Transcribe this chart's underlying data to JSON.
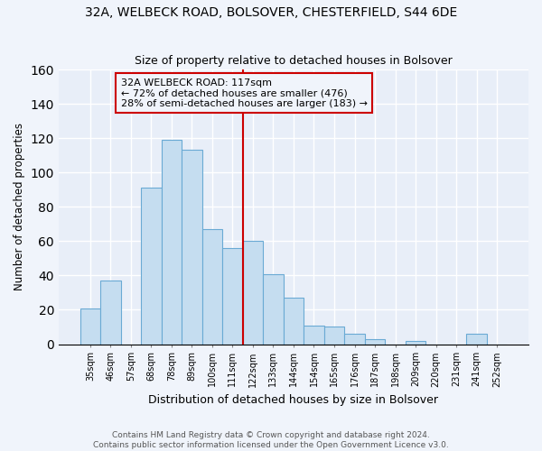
{
  "title": "32A, WELBECK ROAD, BOLSOVER, CHESTERFIELD, S44 6DE",
  "subtitle": "Size of property relative to detached houses in Bolsover",
  "xlabel": "Distribution of detached houses by size in Bolsover",
  "ylabel": "Number of detached properties",
  "bar_labels": [
    "35sqm",
    "46sqm",
    "57sqm",
    "68sqm",
    "78sqm",
    "89sqm",
    "100sqm",
    "111sqm",
    "122sqm",
    "133sqm",
    "144sqm",
    "154sqm",
    "165sqm",
    "176sqm",
    "187sqm",
    "198sqm",
    "209sqm",
    "220sqm",
    "231sqm",
    "241sqm",
    "252sqm"
  ],
  "bar_heights": [
    21,
    37,
    0,
    91,
    119,
    113,
    67,
    56,
    60,
    41,
    27,
    11,
    10,
    6,
    3,
    0,
    2,
    0,
    0,
    6,
    0
  ],
  "bar_color": "#c5ddf0",
  "bar_edge_color": "#6aaad4",
  "vline_color": "#cc0000",
  "annotation_text": "32A WELBECK ROAD: 117sqm\n← 72% of detached houses are smaller (476)\n28% of semi-detached houses are larger (183) →",
  "annotation_box_edge_color": "#cc0000",
  "ylim": [
    0,
    160
  ],
  "yticks": [
    0,
    20,
    40,
    60,
    80,
    100,
    120,
    140,
    160
  ],
  "footer1": "Contains HM Land Registry data © Crown copyright and database right 2024.",
  "footer2": "Contains public sector information licensed under the Open Government Licence v3.0.",
  "background_color": "#f0f4fb",
  "plot_bg_color": "#e8eef8",
  "grid_color": "#ffffff",
  "title_fontsize": 10,
  "subtitle_fontsize": 9,
  "annotation_fontsize": 8,
  "footer_fontsize": 6.5,
  "vline_bar_index": 8
}
